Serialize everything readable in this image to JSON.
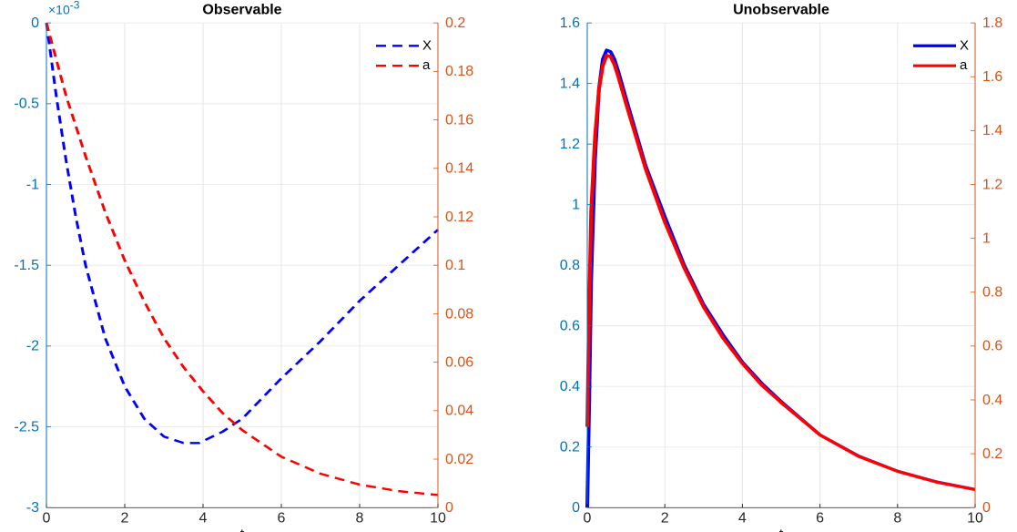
{
  "chart_data": [
    {
      "type": "line",
      "title": "Observable",
      "xlabel": "t",
      "xlim": [
        0,
        10
      ],
      "xticks": [
        "0",
        "2",
        "4",
        "6",
        "8",
        "10"
      ],
      "y_left": {
        "lim": [
          -3,
          0
        ],
        "ticks": [
          "0",
          "-0.5",
          "-1",
          "-1.5",
          "-2",
          "-2.5",
          "-3"
        ],
        "exponent_label": "×10",
        "exponent_power": "-3",
        "color": "#0072BD"
      },
      "y_right": {
        "lim": [
          0,
          0.2
        ],
        "ticks": [
          "0",
          "0.02",
          "0.04",
          "0.06",
          "0.08",
          "0.1",
          "0.12",
          "0.14",
          "0.16",
          "0.18",
          "0.2"
        ],
        "color": "#D95319"
      },
      "grid": true,
      "legend": "top-right",
      "line_style": "dashed",
      "series": [
        {
          "name": "X",
          "axis": "left",
          "color": "#0000FF",
          "scale": "x10^-3",
          "x": [
            0,
            0.25,
            0.5,
            0.75,
            1,
            1.5,
            2,
            2.5,
            3,
            3.5,
            3.9,
            4.5,
            5,
            6,
            7,
            8,
            9,
            10
          ],
          "y": [
            0,
            -0.45,
            -0.85,
            -1.2,
            -1.5,
            -1.95,
            -2.25,
            -2.45,
            -2.56,
            -2.6,
            -2.6,
            -2.53,
            -2.45,
            -2.2,
            -1.97,
            -1.72,
            -1.5,
            -1.28
          ]
        },
        {
          "name": "a",
          "axis": "right",
          "color": "#FF0000",
          "x": [
            0,
            0.5,
            1,
            1.5,
            2,
            2.5,
            3,
            3.5,
            4,
            4.5,
            5,
            6,
            7,
            8,
            9,
            10
          ],
          "y": [
            0.2,
            0.17,
            0.145,
            0.122,
            0.102,
            0.085,
            0.07,
            0.058,
            0.048,
            0.039,
            0.032,
            0.021,
            0.014,
            0.0095,
            0.0068,
            0.0052
          ]
        }
      ]
    },
    {
      "type": "line",
      "title": "Unobservable",
      "xlabel": "t",
      "xlim": [
        0,
        10
      ],
      "xticks": [
        "0",
        "2",
        "4",
        "6",
        "8",
        "10"
      ],
      "y_left": {
        "lim": [
          0,
          1.6
        ],
        "ticks": [
          "0",
          "0.2",
          "0.4",
          "0.6",
          "0.8",
          "1",
          "1.2",
          "1.4",
          "1.6"
        ],
        "color": "#0072BD"
      },
      "y_right": {
        "lim": [
          0,
          1.8
        ],
        "ticks": [
          "0",
          "0.2",
          "0.4",
          "0.6",
          "0.8",
          "1",
          "1.2",
          "1.4",
          "1.6",
          "1.8"
        ],
        "color": "#D95319"
      },
      "grid": true,
      "legend": "top-right",
      "line_style": "solid",
      "series": [
        {
          "name": "X",
          "axis": "left",
          "color": "#0000FF",
          "x": [
            0,
            0.05,
            0.1,
            0.2,
            0.3,
            0.4,
            0.5,
            0.6,
            0.7,
            0.8,
            1,
            1.25,
            1.5,
            2,
            2.5,
            3,
            3.5,
            4,
            4.5,
            5,
            6,
            7,
            8,
            9,
            10
          ],
          "y": [
            0,
            0.35,
            0.75,
            1.15,
            1.38,
            1.48,
            1.51,
            1.505,
            1.48,
            1.44,
            1.35,
            1.24,
            1.13,
            0.96,
            0.8,
            0.67,
            0.57,
            0.48,
            0.41,
            0.35,
            0.24,
            0.17,
            0.12,
            0.085,
            0.06
          ]
        },
        {
          "name": "a",
          "axis": "right",
          "color": "#FF0000",
          "x": [
            0,
            0.05,
            0.1,
            0.2,
            0.3,
            0.4,
            0.5,
            0.6,
            0.7,
            0.8,
            1,
            1.25,
            1.5,
            2,
            2.5,
            3,
            3.5,
            4,
            4.5,
            5,
            6,
            7,
            8,
            9,
            10
          ],
          "y": [
            0.3,
            0.75,
            1.1,
            1.38,
            1.55,
            1.64,
            1.68,
            1.675,
            1.645,
            1.6,
            1.5,
            1.38,
            1.26,
            1.06,
            0.89,
            0.745,
            0.63,
            0.535,
            0.455,
            0.39,
            0.27,
            0.19,
            0.135,
            0.095,
            0.067
          ]
        }
      ]
    }
  ]
}
